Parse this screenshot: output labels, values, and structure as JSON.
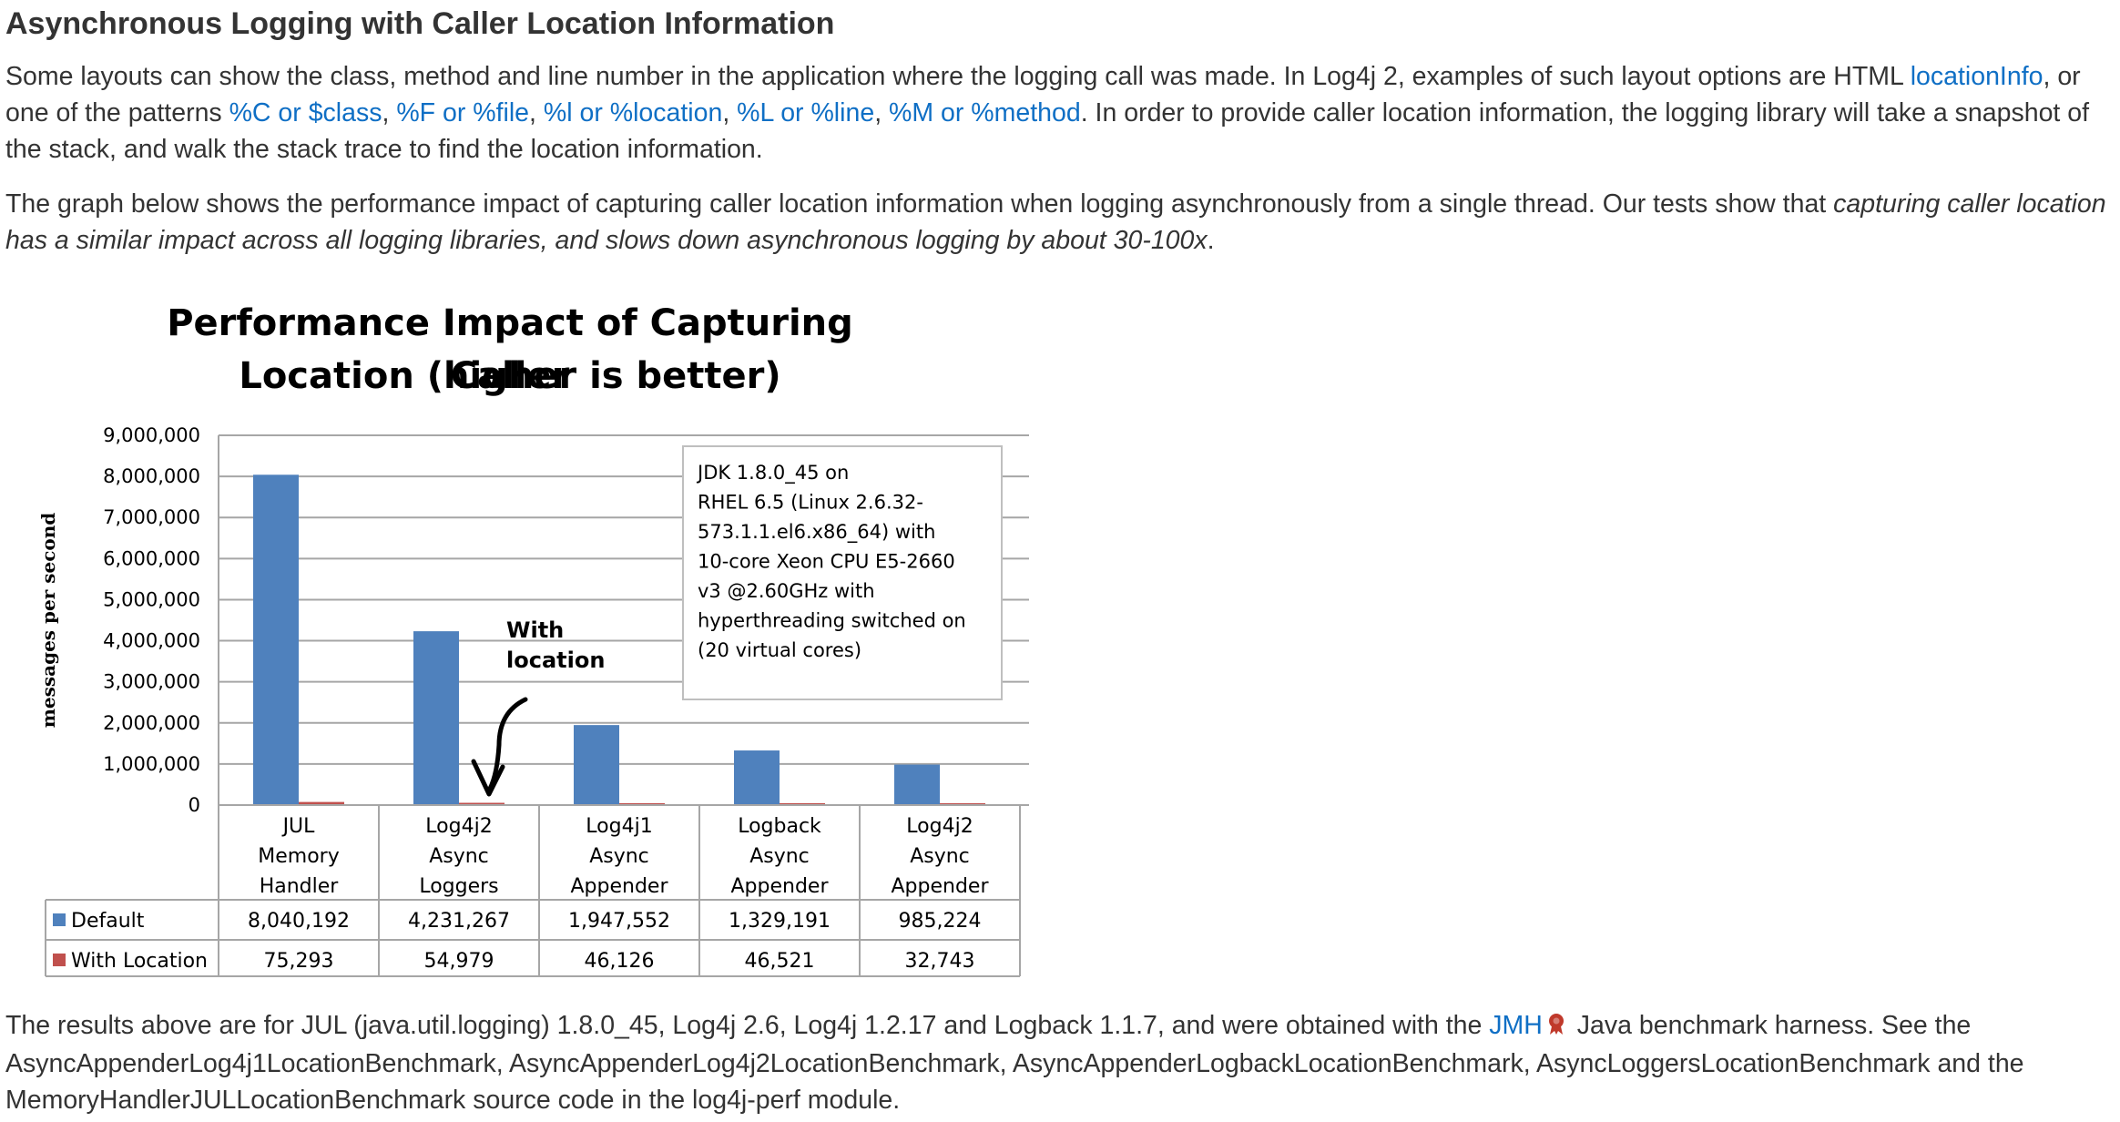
{
  "heading": "Asynchronous Logging with Caller Location Information",
  "para1": {
    "t1": "Some layouts can show the class, method and line number in the application where the logging call was made. In Log4j 2, examples of such layout options are HTML ",
    "link1": "locationInfo",
    "t2": ", or one of the patterns ",
    "link2": "%C or $class",
    "sep1": ", ",
    "link3": "%F or %file",
    "sep2": ", ",
    "link4": "%l or %location",
    "sep3": ", ",
    "link5": "%L or %line",
    "sep4": ", ",
    "link6": "%M or %method",
    "t3": ". In order to provide caller location information, the logging library will take a snapshot of the stack, and walk the stack trace to find the location information."
  },
  "para2": {
    "t1": "The graph below shows the performance impact of capturing caller location information when logging asynchronously from a single thread. Our tests show that ",
    "em": "capturing caller location has a similar impact across all logging libraries, and slows down asynchronous logging by about 30-100x",
    "t2": "."
  },
  "para3": {
    "t1": "The results above are for JUL (java.util.logging) 1.8.0_45, Log4j 2.6, Log4j 1.2.17 and Logback 1.1.7, and were obtained with the ",
    "link": "JMH",
    "icon": "external-link-icon",
    "t2": " Java benchmark harness. See the AsyncAppenderLog4j1LocationBenchmark, AsyncAppenderLog4j2LocationBenchmark, AsyncAppenderLogbackLocationBenchmark, AsyncLoggersLocationBenchmark and the MemoryHandlerJULLocationBenchmark source code in the log4j-perf module."
  },
  "colors": {
    "text": "#333333",
    "link": "#0f6fc5",
    "default_series": "#4f81bd",
    "location_series": "#c0504d",
    "gridline": "#a6a6a6",
    "external_icon": "#c0392b"
  },
  "chart_data": {
    "type": "bar",
    "title_line1": "Performance Impact of Capturing Caller",
    "title_line2": "Location (higher is better)",
    "ylabel": "messages per second",
    "xlabel": "",
    "ylim": [
      0,
      9000000
    ],
    "yticks": [
      "0",
      "1,000,000",
      "2,000,000",
      "3,000,000",
      "4,000,000",
      "5,000,000",
      "6,000,000",
      "7,000,000",
      "8,000,000",
      "9,000,000"
    ],
    "grid": true,
    "legend": "data-table",
    "categories": [
      [
        "JUL",
        "Memory",
        "Handler"
      ],
      [
        "Log4j2",
        "Async",
        "Loggers"
      ],
      [
        "Log4j1",
        "Async",
        "Appender"
      ],
      [
        "Logback",
        "Async",
        "Appender"
      ],
      [
        "Log4j2",
        "Async",
        "Appender"
      ]
    ],
    "series": [
      {
        "name": "Default",
        "values": [
          8040192,
          4231267,
          1947552,
          1329191,
          985224
        ],
        "labels": [
          "8,040,192",
          "4,231,267",
          "1,947,552",
          "1,329,191",
          "985,224"
        ]
      },
      {
        "name": "With Location",
        "values": [
          75293,
          54979,
          46126,
          46521,
          32743
        ],
        "labels": [
          "75,293",
          "54,979",
          "46,126",
          "46,521",
          "32,743"
        ]
      }
    ],
    "annotation": [
      "With",
      "location"
    ],
    "note": [
      "JDK 1.8.0_45 on",
      "RHEL 6.5 (Linux 2.6.32-",
      "573.1.1.el6.x86_64) with",
      "10-core Xeon CPU E5-2660",
      "v3 @2.60GHz with",
      "hyperthreading switched on",
      "(20 virtual cores)"
    ]
  }
}
